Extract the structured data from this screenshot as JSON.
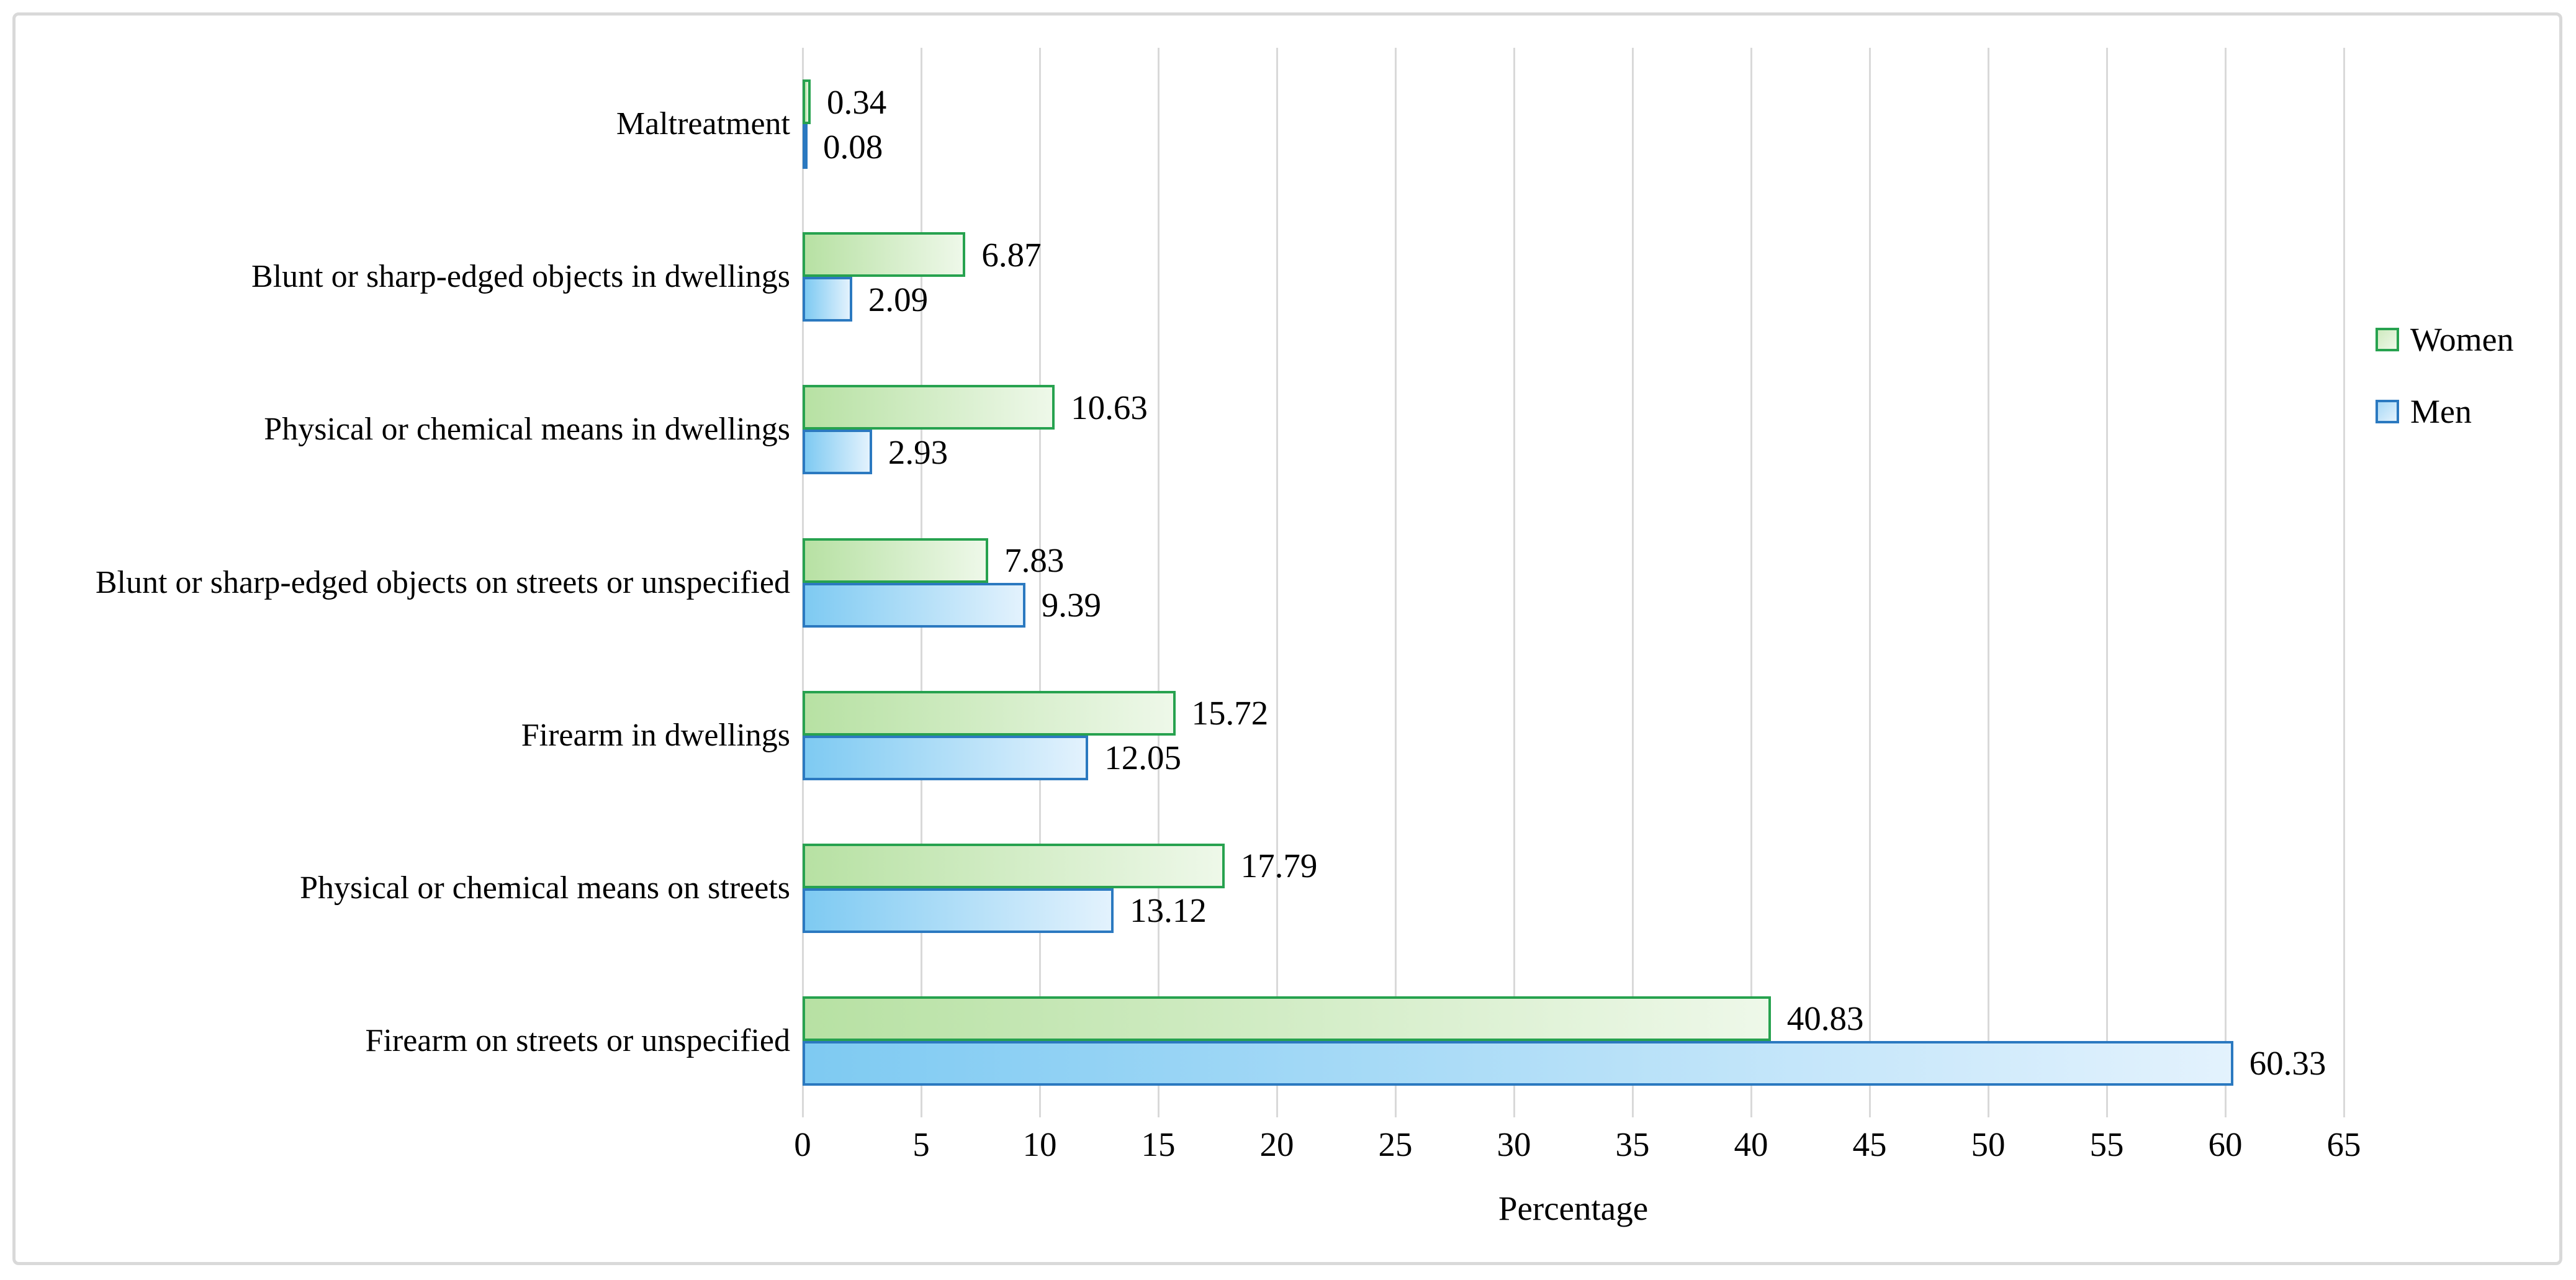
{
  "chart_data": {
    "type": "bar",
    "orientation": "horizontal",
    "title": "",
    "xlabel": "Percentage",
    "xlim": [
      0,
      65
    ],
    "xticks": [
      0,
      5,
      10,
      15,
      20,
      25,
      30,
      35,
      40,
      45,
      50,
      55,
      60,
      65
    ],
    "grid": "vertical",
    "legend_position": "right",
    "categories": [
      "Maltreatment",
      "Blunt or sharp-edged objects in dwellings",
      "Physical or chemical means in dwellings",
      "Blunt or sharp-edged objects on streets or unspecified",
      "Firearm in dwellings",
      "Physical or chemical means on streets",
      "Firearm on streets or unspecified"
    ],
    "series": [
      {
        "name": "Women",
        "values": [
          0.34,
          6.87,
          10.63,
          7.83,
          15.72,
          17.79,
          40.83
        ],
        "border_color": "#27a24f",
        "fill_start": "#b7e1a3",
        "fill_end": "#eef8e9"
      },
      {
        "name": "Men",
        "values": [
          0.08,
          2.09,
          2.93,
          9.39,
          12.05,
          13.12,
          60.33
        ],
        "border_color": "#2b79c0",
        "fill_start": "#7ecaf2",
        "fill_end": "#e3f2fd"
      }
    ],
    "gridline_color": "#d9d9d9",
    "frame_color": "#d9d9d9",
    "text_color": "#000000"
  }
}
